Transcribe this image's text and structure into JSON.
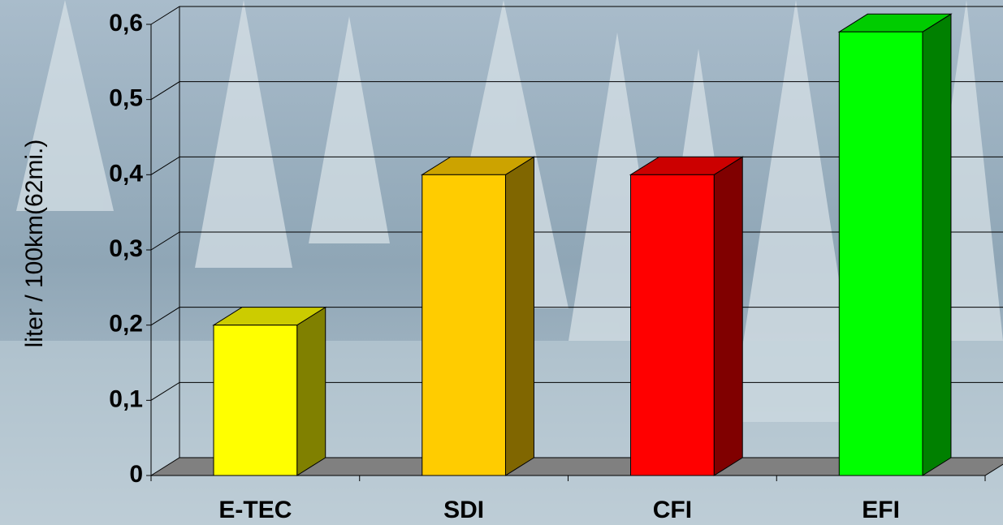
{
  "chart_data": {
    "type": "bar3d",
    "y_label": "liter / 100km(62mi.)",
    "categories": [
      "E-TEC",
      "SDI",
      "CFI",
      "EFI"
    ],
    "values": [
      0.2,
      0.4,
      0.4,
      0.59
    ],
    "colors": [
      "#ffff00",
      "#ffcc00",
      "#ff0000",
      "#00ff00"
    ],
    "ylim": [
      0,
      0.6
    ],
    "yticks": [
      0,
      {
        "value": 0.1,
        "label": "0,1"
      },
      {
        "value": 0.2,
        "label": "0,2"
      },
      {
        "value": 0.3,
        "label": "0,3"
      },
      {
        "value": 0.4,
        "label": "0,4"
      },
      {
        "value": 0.5,
        "label": "0,5"
      },
      {
        "value": 0.6,
        "label": "0,6"
      }
    ],
    "grid": true
  }
}
